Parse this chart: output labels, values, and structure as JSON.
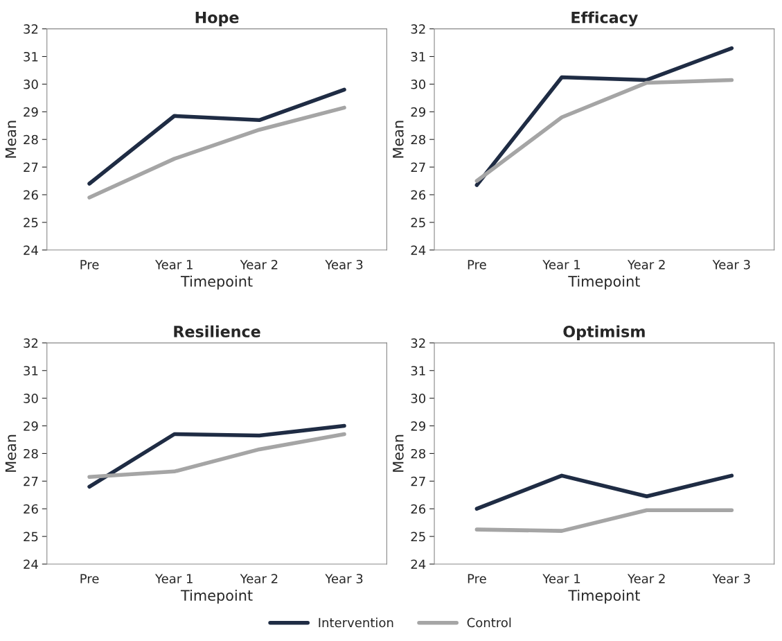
{
  "chart_data": [
    {
      "type": "line",
      "title": "Hope",
      "xlabel": "Timepoint",
      "ylabel": "Mean",
      "categories": [
        "Pre",
        "Year 1",
        "Year 2",
        "Year 3"
      ],
      "ylim": [
        24,
        32
      ],
      "yticks": [
        24,
        25,
        26,
        27,
        28,
        29,
        30,
        31,
        32
      ],
      "legend": "bottom",
      "grid": false,
      "series": [
        {
          "name": "Intervention",
          "color": "#1f2c44",
          "values": [
            26.4,
            28.85,
            28.7,
            29.8
          ]
        },
        {
          "name": "Control",
          "color": "#a5a5a5",
          "values": [
            25.9,
            27.3,
            28.35,
            29.15
          ]
        }
      ]
    },
    {
      "type": "line",
      "title": "Efficacy",
      "xlabel": "Timepoint",
      "ylabel": "Mean",
      "categories": [
        "Pre",
        "Year 1",
        "Year 2",
        "Year 3"
      ],
      "ylim": [
        24,
        32
      ],
      "yticks": [
        24,
        25,
        26,
        27,
        28,
        29,
        30,
        31,
        32
      ],
      "grid": false,
      "series": [
        {
          "color": "#1f2c44",
          "values": [
            26.35,
            30.25,
            30.15,
            31.3
          ]
        },
        {
          "color": "#a5a5a5",
          "values": [
            26.5,
            28.8,
            30.05,
            30.15
          ]
        }
      ]
    },
    {
      "type": "line",
      "title": "Resilience",
      "xlabel": "Timepoint",
      "ylabel": "Mean",
      "categories": [
        "Pre",
        "Year 1",
        "Year 2",
        "Year 3"
      ],
      "ylim": [
        24,
        32
      ],
      "yticks": [
        24,
        25,
        26,
        27,
        28,
        29,
        30,
        31,
        32
      ],
      "grid": false,
      "series": [
        {
          "color": "#1f2c44",
          "values": [
            26.8,
            28.7,
            28.65,
            29.0
          ]
        },
        {
          "color": "#a5a5a5",
          "values": [
            27.15,
            27.35,
            28.15,
            28.7
          ]
        }
      ]
    },
    {
      "type": "line",
      "title": "Optimism",
      "xlabel": "Timepoint",
      "ylabel": "Mean",
      "categories": [
        "Pre",
        "Year 1",
        "Year 2",
        "Year 3"
      ],
      "ylim": [
        24,
        32
      ],
      "yticks": [
        24,
        25,
        26,
        27,
        28,
        29,
        30,
        31,
        32
      ],
      "grid": false,
      "series": [
        {
          "color": "#1f2c44",
          "values": [
            26.0,
            27.2,
            26.45,
            27.2
          ]
        },
        {
          "color": "#a5a5a5",
          "values": [
            25.25,
            25.2,
            25.95,
            25.95
          ]
        }
      ]
    }
  ]
}
